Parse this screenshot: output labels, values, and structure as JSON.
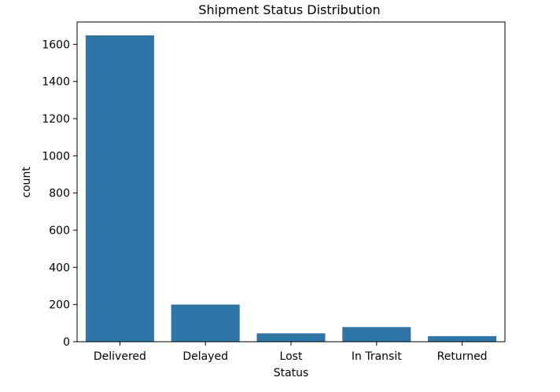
{
  "chart_data": {
    "type": "bar",
    "title": "Shipment Status Distribution",
    "xlabel": "Status",
    "ylabel": "count",
    "categories": [
      "Delivered",
      "Delayed",
      "Lost",
      "In Transit",
      "Returned"
    ],
    "values": [
      1648,
      200,
      45,
      79,
      30
    ],
    "ylim": [
      0,
      1720
    ],
    "yticks": [
      0,
      200,
      400,
      600,
      800,
      1000,
      1200,
      1400,
      1600
    ],
    "grid": false,
    "bar_color": "#2e75a8"
  }
}
